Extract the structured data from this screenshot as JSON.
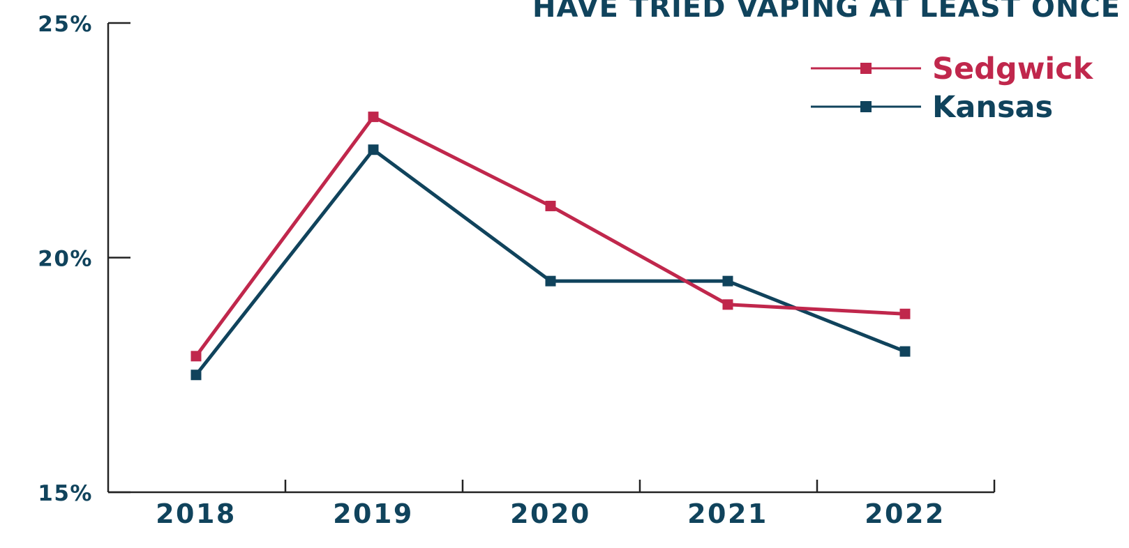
{
  "colors": {
    "text": "#10435c",
    "axis": "#222222"
  },
  "chart_data": {
    "type": "line",
    "title": "HAVE TRIED VAPING AT LEAST ONCE",
    "xlabel": "",
    "ylabel": "",
    "categories": [
      "2018",
      "2019",
      "2020",
      "2021",
      "2022"
    ],
    "y_ticks": [
      "15%",
      "20%",
      "25%"
    ],
    "y_tick_values": [
      15,
      20,
      25
    ],
    "ylim": [
      15,
      25
    ],
    "grid": false,
    "legend_position": "top-right",
    "series": [
      {
        "name": "Sedgwick",
        "color": "#c0274c",
        "values": [
          17.9,
          23.0,
          21.1,
          19.0,
          18.8
        ]
      },
      {
        "name": "Kansas",
        "color": "#10435c",
        "values": [
          17.5,
          22.3,
          19.5,
          19.5,
          18.0
        ]
      }
    ]
  }
}
